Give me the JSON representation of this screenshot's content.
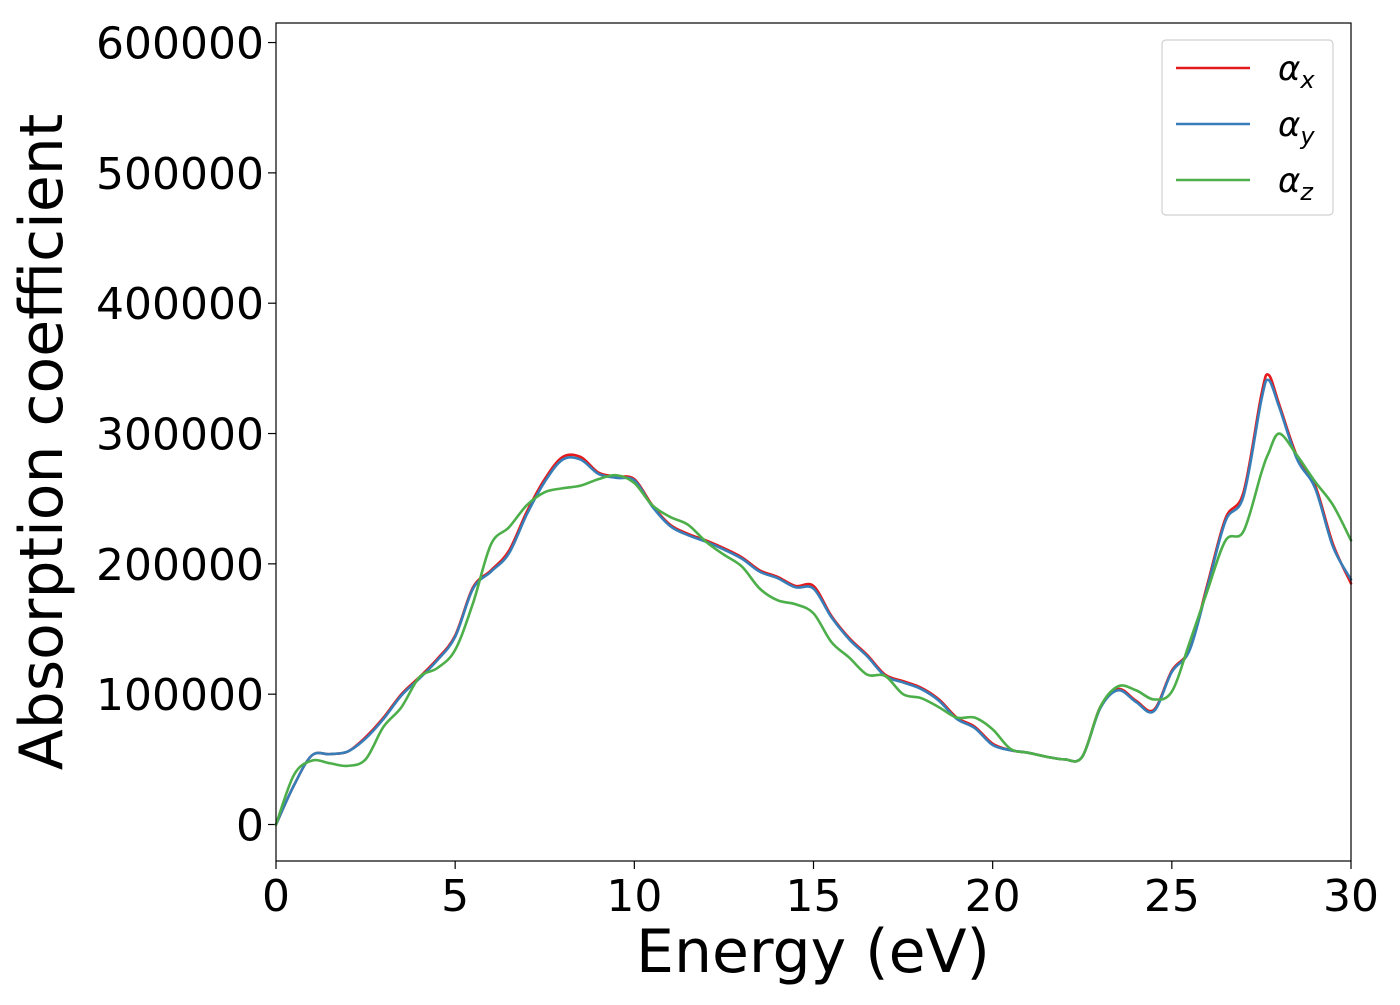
{
  "chart_data": {
    "type": "line",
    "title": "",
    "xlabel": "Energy (eV)",
    "ylabel": "Absorption coefficient",
    "xlim": [
      0,
      30
    ],
    "ylim": [
      -28000,
      615000
    ],
    "x_ticks": [
      0,
      5,
      10,
      15,
      20,
      25,
      30
    ],
    "y_ticks": [
      0,
      100000,
      200000,
      300000,
      400000,
      500000,
      600000
    ],
    "grid": false,
    "legend_position": "top-right",
    "x": [
      0,
      0.5,
      1,
      1.5,
      2,
      2.5,
      3,
      3.5,
      4,
      4.5,
      5,
      5.5,
      6,
      6.5,
      7,
      7.5,
      8,
      8.5,
      9,
      9.5,
      10,
      10.5,
      11,
      11.5,
      12,
      12.5,
      13,
      13.5,
      14,
      14.5,
      15,
      15.5,
      16,
      16.5,
      17,
      17.5,
      18,
      18.5,
      19,
      19.5,
      20,
      20.5,
      21,
      21.5,
      22,
      22.5,
      23,
      23.5,
      24,
      24.5,
      25,
      25.5,
      26,
      26.5,
      27,
      27.5,
      27.7,
      28,
      28.5,
      29,
      29.5,
      30
    ],
    "series": [
      {
        "name": "α",
        "name_sub": "x",
        "color": "#e41a1c",
        "values": [
          0,
          30000,
          53000,
          54000,
          56000,
          67000,
          82000,
          100000,
          113000,
          127000,
          145000,
          182000,
          195000,
          210000,
          240000,
          265000,
          282000,
          282000,
          270000,
          267000,
          265000,
          245000,
          230000,
          223000,
          218000,
          212000,
          205000,
          195000,
          190000,
          183000,
          183000,
          160000,
          143000,
          130000,
          115000,
          110000,
          105000,
          96000,
          82000,
          75000,
          62000,
          57000,
          55000,
          52000,
          50000,
          52000,
          90000,
          104000,
          95000,
          88000,
          118000,
          135000,
          185000,
          235000,
          255000,
          330000,
          345000,
          322000,
          282000,
          260000,
          215000,
          185000
        ]
      },
      {
        "name": "α",
        "name_sub": "y",
        "color": "#377eb8",
        "values": [
          0,
          30000,
          53000,
          54000,
          56000,
          66000,
          81000,
          99000,
          112000,
          126000,
          144000,
          181000,
          194000,
          208000,
          238000,
          263000,
          280000,
          280000,
          269000,
          266000,
          264000,
          244000,
          229000,
          222000,
          217000,
          211000,
          204000,
          194000,
          189000,
          182000,
          181000,
          159000,
          142000,
          129000,
          114000,
          109000,
          104000,
          95000,
          81000,
          74000,
          61000,
          57000,
          55000,
          52000,
          50000,
          52000,
          89000,
          103000,
          94000,
          87000,
          117000,
          134000,
          183000,
          233000,
          252000,
          326000,
          341000,
          320000,
          280000,
          258000,
          213000,
          188000
        ]
      },
      {
        "name": "α",
        "name_sub": "z",
        "color": "#4daf4a",
        "values": [
          0,
          38000,
          49000,
          47000,
          45000,
          50000,
          75000,
          90000,
          113000,
          120000,
          134000,
          170000,
          215000,
          228000,
          245000,
          255000,
          258000,
          260000,
          265000,
          268000,
          262000,
          245000,
          236000,
          230000,
          217000,
          207000,
          198000,
          181000,
          172000,
          169000,
          162000,
          140000,
          128000,
          115000,
          114000,
          100000,
          97000,
          90000,
          82000,
          82000,
          73000,
          58000,
          55000,
          52000,
          50000,
          52000,
          90000,
          106000,
          103000,
          96000,
          102000,
          140000,
          180000,
          218000,
          225000,
          270000,
          285000,
          300000,
          283000,
          263000,
          245000,
          218000
        ]
      }
    ]
  }
}
